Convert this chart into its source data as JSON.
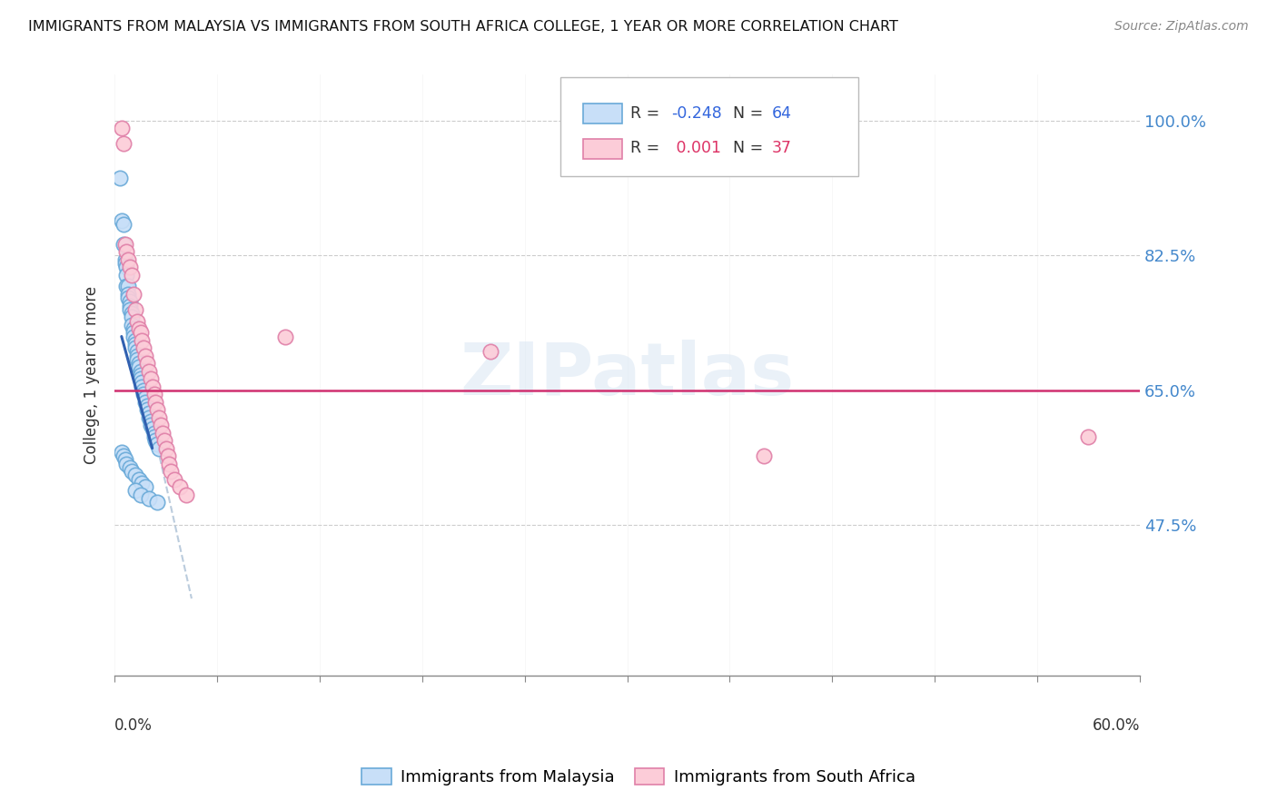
{
  "title": "IMMIGRANTS FROM MALAYSIA VS IMMIGRANTS FROM SOUTH AFRICA COLLEGE, 1 YEAR OR MORE CORRELATION CHART",
  "source": "Source: ZipAtlas.com",
  "ylabel": "College, 1 year or more",
  "xmin": 0.0,
  "xmax": 0.6,
  "ymin": 0.28,
  "ymax": 1.06,
  "ytick_vals": [
    0.475,
    0.65,
    0.825,
    1.0
  ],
  "ytick_labels": [
    "47.5%",
    "65.0%",
    "82.5%",
    "100.0%"
  ],
  "malaysia_color_face": "#c8dff8",
  "malaysia_color_edge": "#6aaad8",
  "malaysia_trend_color": "#3060b0",
  "southafrica_color_face": "#fcccd8",
  "southafrica_color_edge": "#e080a8",
  "southafrica_trend_color": "#d03070",
  "dash_color": "#bbccdd",
  "watermark_color": "#dce8f4",
  "right_axis_color": "#4488cc",
  "grid_color": "#cccccc",
  "title_color": "#111111",
  "source_color": "#888888",
  "malaysia_R": "-0.248",
  "malaysia_N": "64",
  "southafrica_R": "0.001",
  "southafrica_N": "37",
  "legend_label_malaysia": "Immigrants from Malaysia",
  "legend_label_southafrica": "Immigrants from South Africa",
  "malaysia_x": [
    0.003,
    0.004,
    0.005,
    0.005,
    0.006,
    0.006,
    0.007,
    0.007,
    0.007,
    0.008,
    0.008,
    0.008,
    0.009,
    0.009,
    0.009,
    0.01,
    0.01,
    0.01,
    0.011,
    0.011,
    0.011,
    0.012,
    0.012,
    0.012,
    0.013,
    0.013,
    0.013,
    0.014,
    0.014,
    0.015,
    0.015,
    0.015,
    0.016,
    0.016,
    0.017,
    0.017,
    0.018,
    0.018,
    0.019,
    0.019,
    0.02,
    0.02,
    0.021,
    0.021,
    0.022,
    0.023,
    0.023,
    0.024,
    0.025,
    0.026,
    0.004,
    0.005,
    0.006,
    0.007,
    0.009,
    0.01,
    0.012,
    0.014,
    0.016,
    0.018,
    0.012,
    0.015,
    0.02,
    0.025
  ],
  "malaysia_y": [
    0.925,
    0.87,
    0.865,
    0.84,
    0.82,
    0.815,
    0.81,
    0.8,
    0.785,
    0.785,
    0.775,
    0.77,
    0.765,
    0.76,
    0.755,
    0.75,
    0.745,
    0.735,
    0.73,
    0.725,
    0.72,
    0.715,
    0.71,
    0.705,
    0.7,
    0.695,
    0.69,
    0.685,
    0.68,
    0.675,
    0.67,
    0.665,
    0.66,
    0.655,
    0.65,
    0.645,
    0.64,
    0.635,
    0.63,
    0.625,
    0.62,
    0.615,
    0.61,
    0.605,
    0.6,
    0.595,
    0.59,
    0.585,
    0.58,
    0.575,
    0.57,
    0.565,
    0.56,
    0.555,
    0.55,
    0.545,
    0.54,
    0.535,
    0.53,
    0.525,
    0.52,
    0.515,
    0.51,
    0.505
  ],
  "southafrica_x": [
    0.004,
    0.005,
    0.006,
    0.007,
    0.008,
    0.009,
    0.01,
    0.011,
    0.012,
    0.013,
    0.014,
    0.015,
    0.016,
    0.017,
    0.018,
    0.019,
    0.02,
    0.021,
    0.022,
    0.023,
    0.024,
    0.025,
    0.026,
    0.027,
    0.028,
    0.029,
    0.03,
    0.031,
    0.032,
    0.033,
    0.035,
    0.038,
    0.042,
    0.1,
    0.22,
    0.38,
    0.57
  ],
  "southafrica_y": [
    0.99,
    0.97,
    0.84,
    0.83,
    0.82,
    0.81,
    0.8,
    0.775,
    0.755,
    0.74,
    0.73,
    0.725,
    0.715,
    0.705,
    0.695,
    0.685,
    0.675,
    0.665,
    0.655,
    0.645,
    0.635,
    0.625,
    0.615,
    0.605,
    0.595,
    0.585,
    0.575,
    0.565,
    0.555,
    0.545,
    0.535,
    0.525,
    0.515,
    0.72,
    0.7,
    0.565,
    0.59
  ],
  "malaysia_trend_x": [
    0.004,
    0.022
  ],
  "malaysia_trend_y": [
    0.72,
    0.575
  ],
  "southafrica_trend_y": 0.65,
  "dash_trend_x": [
    0.016,
    0.045
  ],
  "dash_trend_y": [
    0.665,
    0.38
  ]
}
